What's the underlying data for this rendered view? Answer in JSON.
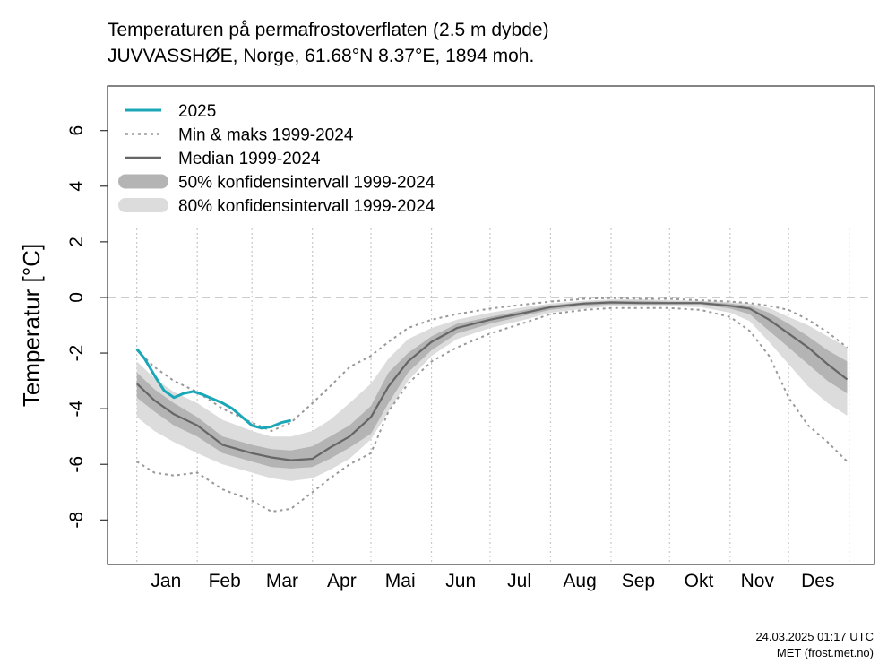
{
  "header": {
    "title": "Temperaturen på permafrostoverflaten (2.5 m dybde)",
    "subtitle": "JUVVASSHØE, Norge, 61.68°N 8.37°E, 1894 moh."
  },
  "footer": {
    "timestamp": "24.03.2025 01:17 UTC",
    "source": "MET (frost.met.no)"
  },
  "colors": {
    "current": "#1aa7b8",
    "median": "#666666",
    "minmax": "#999999",
    "band50": "#b4b4b4",
    "band80": "#dcdcdc",
    "zero": "#bbbbbb",
    "grid": "#c8c8c8"
  },
  "chart_data": {
    "type": "line",
    "title": "Temperaturen på permafrostoverflaten (2.5 m dybde)",
    "subtitle": "JUVVASSHØE, Norge, 61.68°N 8.37°E, 1894 moh.",
    "xlabel": "",
    "ylabel": "Temperatur [°C]",
    "xlim": [
      -14,
      379
    ],
    "ylim": [
      -9.6,
      7.6
    ],
    "yticks": [
      -8,
      -6,
      -4,
      -2,
      0,
      2,
      4,
      6
    ],
    "month_starts": [
      1,
      32,
      60,
      91,
      121,
      152,
      182,
      213,
      244,
      274,
      305,
      335,
      366
    ],
    "months": [
      {
        "label": "Jan",
        "mid": 16
      },
      {
        "label": "Feb",
        "mid": 46
      },
      {
        "label": "Mar",
        "mid": 75.5
      },
      {
        "label": "Apr",
        "mid": 106
      },
      {
        "label": "Mai",
        "mid": 136
      },
      {
        "label": "Jun",
        "mid": 167
      },
      {
        "label": "Jul",
        "mid": 197
      },
      {
        "label": "Aug",
        "mid": 228
      },
      {
        "label": "Sep",
        "mid": 258
      },
      {
        "label": "Okt",
        "mid": 289
      },
      {
        "label": "Nov",
        "mid": 319
      },
      {
        "label": "Des",
        "mid": 350
      }
    ],
    "legend": {
      "position": "top-left",
      "entries": [
        {
          "label": "2025",
          "style": "current"
        },
        {
          "label": "Min & maks 1999-2024",
          "style": "minmax"
        },
        {
          "label": "Median 1999-2024",
          "style": "median"
        },
        {
          "label": "50% konfidensintervall 1999-2024",
          "style": "band50"
        },
        {
          "label": "80% konfidensintervall 1999-2024",
          "style": "band80"
        }
      ]
    },
    "x": [
      1,
      10,
      20,
      32,
      45,
      60,
      70,
      80,
      91,
      100,
      110,
      121,
      130,
      140,
      152,
      165,
      182,
      200,
      213,
      230,
      244,
      260,
      274,
      290,
      305,
      315,
      325,
      335,
      345,
      355,
      365
    ],
    "series": [
      {
        "name": "Median 1999-2024",
        "values": [
          -3.1,
          -3.7,
          -4.2,
          -4.6,
          -5.3,
          -5.6,
          -5.75,
          -5.85,
          -5.8,
          -5.4,
          -5.0,
          -4.3,
          -3.2,
          -2.3,
          -1.6,
          -1.1,
          -0.8,
          -0.55,
          -0.35,
          -0.22,
          -0.18,
          -0.2,
          -0.2,
          -0.2,
          -0.3,
          -0.4,
          -0.8,
          -1.3,
          -1.8,
          -2.4,
          -2.95
        ]
      },
      {
        "name": "Min 1999-2024",
        "values": [
          -5.9,
          -6.3,
          -6.4,
          -6.3,
          -6.9,
          -7.3,
          -7.7,
          -7.6,
          -7.0,
          -6.5,
          -6.0,
          -5.6,
          -4.1,
          -3.1,
          -2.3,
          -1.8,
          -1.3,
          -0.9,
          -0.6,
          -0.45,
          -0.38,
          -0.38,
          -0.38,
          -0.45,
          -0.7,
          -1.2,
          -2.1,
          -3.6,
          -4.6,
          -5.2,
          -5.9
        ]
      },
      {
        "name": "Maks 1999-2024",
        "values": [
          -1.9,
          -2.5,
          -3.0,
          -3.4,
          -4.0,
          -4.5,
          -4.8,
          -4.5,
          -3.8,
          -3.2,
          -2.5,
          -2.1,
          -1.6,
          -1.1,
          -0.8,
          -0.6,
          -0.4,
          -0.25,
          -0.15,
          -0.05,
          -0.02,
          -0.05,
          -0.05,
          -0.1,
          -0.15,
          -0.2,
          -0.3,
          -0.45,
          -0.8,
          -1.25,
          -1.8
        ]
      },
      {
        "name": "50% lower",
        "values": [
          -3.6,
          -4.1,
          -4.6,
          -5.0,
          -5.6,
          -5.9,
          -6.1,
          -6.15,
          -6.1,
          -5.8,
          -5.4,
          -4.9,
          -3.8,
          -2.7,
          -1.9,
          -1.3,
          -0.95,
          -0.65,
          -0.45,
          -0.3,
          -0.25,
          -0.25,
          -0.25,
          -0.25,
          -0.4,
          -0.6,
          -1.2,
          -1.8,
          -2.4,
          -3.0,
          -3.45
        ]
      },
      {
        "name": "50% upper",
        "values": [
          -2.7,
          -3.3,
          -3.8,
          -4.3,
          -5.0,
          -5.3,
          -5.45,
          -5.5,
          -5.35,
          -5.0,
          -4.6,
          -3.9,
          -2.7,
          -2.0,
          -1.4,
          -0.95,
          -0.7,
          -0.45,
          -0.28,
          -0.17,
          -0.12,
          -0.12,
          -0.15,
          -0.15,
          -0.22,
          -0.3,
          -0.55,
          -0.95,
          -1.4,
          -1.9,
          -2.3
        ]
      },
      {
        "name": "80% lower",
        "values": [
          -4.3,
          -4.8,
          -5.2,
          -5.6,
          -6.0,
          -6.3,
          -6.5,
          -6.6,
          -6.5,
          -6.2,
          -5.8,
          -5.1,
          -4.1,
          -3.0,
          -2.1,
          -1.5,
          -1.1,
          -0.8,
          -0.55,
          -0.4,
          -0.32,
          -0.32,
          -0.32,
          -0.35,
          -0.55,
          -0.85,
          -1.6,
          -2.4,
          -3.2,
          -3.8,
          -4.25
        ]
      },
      {
        "name": "80% upper",
        "values": [
          -2.3,
          -2.9,
          -3.4,
          -3.8,
          -4.4,
          -4.8,
          -5.0,
          -5.0,
          -4.8,
          -4.4,
          -3.8,
          -3.1,
          -2.2,
          -1.5,
          -1.1,
          -0.8,
          -0.55,
          -0.35,
          -0.22,
          -0.12,
          -0.07,
          -0.07,
          -0.1,
          -0.12,
          -0.17,
          -0.22,
          -0.38,
          -0.7,
          -1.0,
          -1.4,
          -1.8
        ]
      },
      {
        "name": "2025",
        "x": [
          1,
          5,
          10,
          15,
          20,
          25,
          30,
          35,
          40,
          45,
          50,
          55,
          60,
          65,
          70,
          75,
          80
        ],
        "values": [
          -1.85,
          -2.2,
          -2.8,
          -3.35,
          -3.6,
          -3.45,
          -3.38,
          -3.5,
          -3.65,
          -3.8,
          -4.0,
          -4.3,
          -4.6,
          -4.7,
          -4.65,
          -4.5,
          -4.42
        ]
      }
    ]
  }
}
